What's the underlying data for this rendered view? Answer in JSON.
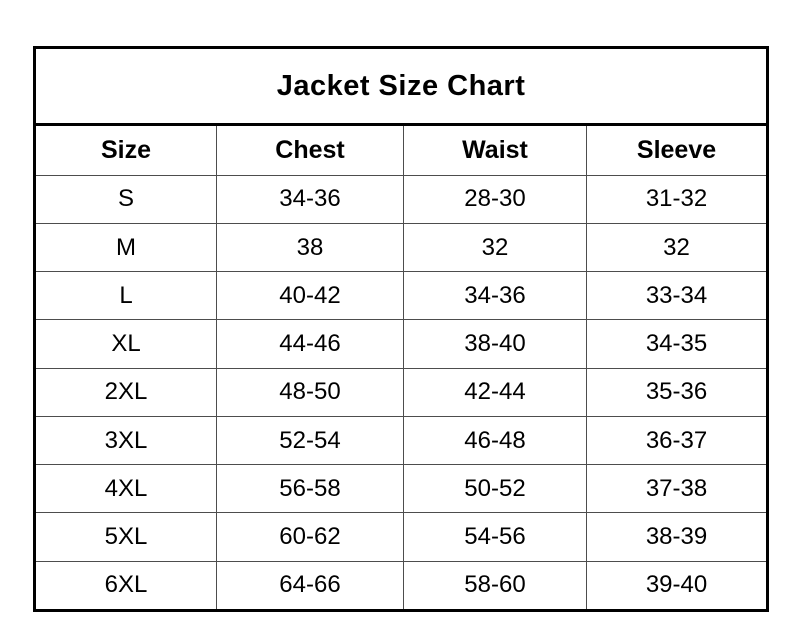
{
  "title": "Jacket Size Chart",
  "colors": {
    "background": "#ffffff",
    "text": "#000000",
    "outer_border": "#000000",
    "inner_grid": "#4d4d4d"
  },
  "chart_data": {
    "type": "table",
    "title": "Jacket Size Chart",
    "columns": [
      "Size",
      "Chest",
      "Waist",
      "Sleeve"
    ],
    "rows": [
      [
        "S",
        "34-36",
        "28-30",
        "31-32"
      ],
      [
        "M",
        "38",
        "32",
        "32"
      ],
      [
        "L",
        "40-42",
        "34-36",
        "33-34"
      ],
      [
        "XL",
        "44-46",
        "38-40",
        "34-35"
      ],
      [
        "2XL",
        "48-50",
        "42-44",
        "35-36"
      ],
      [
        "3XL",
        "52-54",
        "46-48",
        "36-37"
      ],
      [
        "4XL",
        "56-58",
        "50-52",
        "37-38"
      ],
      [
        "5XL",
        "60-62",
        "54-56",
        "38-39"
      ],
      [
        "6XL",
        "64-66",
        "58-60",
        "39-40"
      ]
    ]
  }
}
